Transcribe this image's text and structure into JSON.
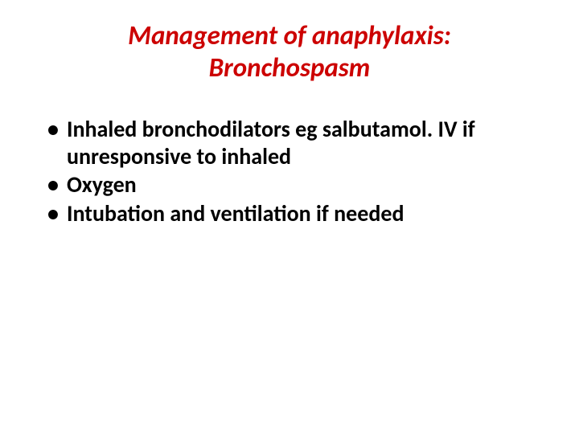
{
  "slide": {
    "title_line1": "Management of anaphylaxis:",
    "title_line2": "Bronchospasm",
    "bullets": [
      "Inhaled bronchodilators eg salbutamol. IV if unresponsive to inhaled",
      "Oxygen",
      "Intubation and ventilation if needed"
    ],
    "title_color": "#cc0000",
    "text_color": "#000000",
    "background_color": "#ffffff",
    "title_fontsize": 33,
    "body_fontsize": 28
  }
}
